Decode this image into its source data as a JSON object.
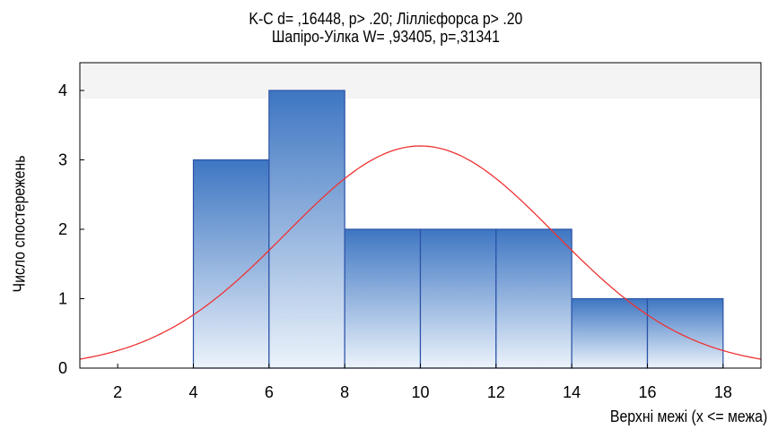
{
  "chart_data": {
    "type": "bar",
    "title": "K-C d= ,16448, p> .20; Ліллієфорса p> .20",
    "subtitle": "Шапіро-Уілка W= ,93405, p=,31341",
    "xlabel": "Верхні межі (x <= межа)",
    "ylabel": "Число спостережень",
    "xlim": [
      1,
      19
    ],
    "ylim": [
      0,
      4.4
    ],
    "x_ticks": [
      2,
      4,
      6,
      8,
      10,
      12,
      14,
      16,
      18
    ],
    "y_ticks": [
      0,
      1,
      2,
      3,
      4
    ],
    "bins": [
      {
        "from": 4,
        "to": 6,
        "count": 3
      },
      {
        "from": 6,
        "to": 8,
        "count": 4
      },
      {
        "from": 8,
        "to": 10,
        "count": 2
      },
      {
        "from": 10,
        "to": 12,
        "count": 2
      },
      {
        "from": 12,
        "to": 14,
        "count": 2
      },
      {
        "from": 14,
        "to": 16,
        "count": 1
      },
      {
        "from": 16,
        "to": 18,
        "count": 1
      }
    ],
    "normal_curve": {
      "mean": 10.0,
      "sd": 3.55,
      "peak": 3.2
    },
    "colors": {
      "bar_top": "#3e76c2",
      "bar_bottom": "#ecf3fb",
      "bar_border": "#2a52a8",
      "curve": "#ee3333",
      "frame": "#000000"
    },
    "grid": false
  }
}
